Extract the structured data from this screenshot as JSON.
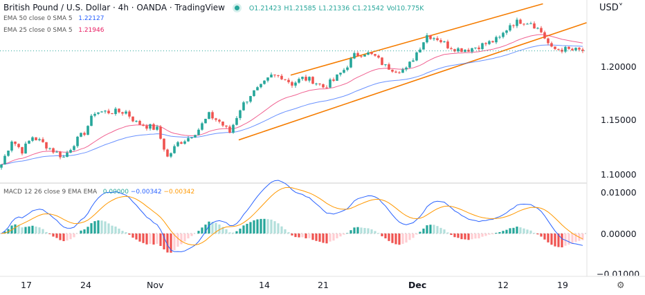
{
  "header": {
    "title": "British Pound / U.S. Dollar · 4h · OANDA · TradingView",
    "open": "O1.21423",
    "high": "H1.21585",
    "low": "L1.21336",
    "close": "C1.21542",
    "volume": "Vol10.775K",
    "ema50_label": "EMA 50 close 0 SMA 5",
    "ema50_value": "1.22127",
    "ema25_label": "EMA 25 close 0 SMA 5",
    "ema25_value": "1.21946",
    "macd_label": "MACD 12 26 close 9 EMA EMA",
    "macd_hist": "0.00000",
    "macd_line": "−0.00342",
    "macd_signal": "−0.00342"
  },
  "currency": "USD",
  "price_ticks": [
    "1.20000",
    "1.15000",
    "1.10000"
  ],
  "macd_ticks": [
    "0.01000",
    "0.00000",
    "−0.01000"
  ],
  "x_ticks": [
    "17",
    "24",
    "Nov",
    "14",
    "21",
    "Dec",
    "12",
    "19"
  ],
  "colors": {
    "up": "#26a69a",
    "down": "#ef5350",
    "ema50": "#2962ff",
    "ema25": "#e91e63",
    "channel": "#f57c00",
    "macd": "#2962ff",
    "signal": "#ff9800"
  },
  "chart_data": {
    "type": "candlestick",
    "yrange": [
      1.095,
      1.2625
    ],
    "close": [
      1.1104,
      1.133,
      1.123,
      1.136,
      1.13,
      1.123,
      1.117,
      1.13,
      1.14,
      1.159,
      1.159,
      1.159,
      1.159,
      1.149,
      1.146,
      1.143,
      1.117,
      1.13,
      1.135,
      1.143,
      1.156,
      1.15,
      1.14,
      1.162,
      1.175,
      1.182,
      1.192,
      1.192,
      1.185,
      1.19,
      1.188,
      1.182,
      1.188,
      1.198,
      1.211,
      1.214,
      1.21,
      1.201,
      1.198,
      1.198,
      1.214,
      1.23,
      1.227,
      1.22,
      1.217,
      1.217,
      1.22,
      1.223,
      1.227,
      1.24,
      1.243,
      1.242,
      1.233,
      1.217,
      1.217,
      1.216,
      1.2154
    ],
    "trendlines": [
      {
        "from": [
          28,
          1.193
        ],
        "to": [
          52.3,
          1.259
        ]
      },
      {
        "from": [
          23,
          1.133
        ],
        "to": [
          56.5,
          1.2415
        ]
      }
    ],
    "macd_range": [
      -0.0105,
      0.0105
    ]
  }
}
